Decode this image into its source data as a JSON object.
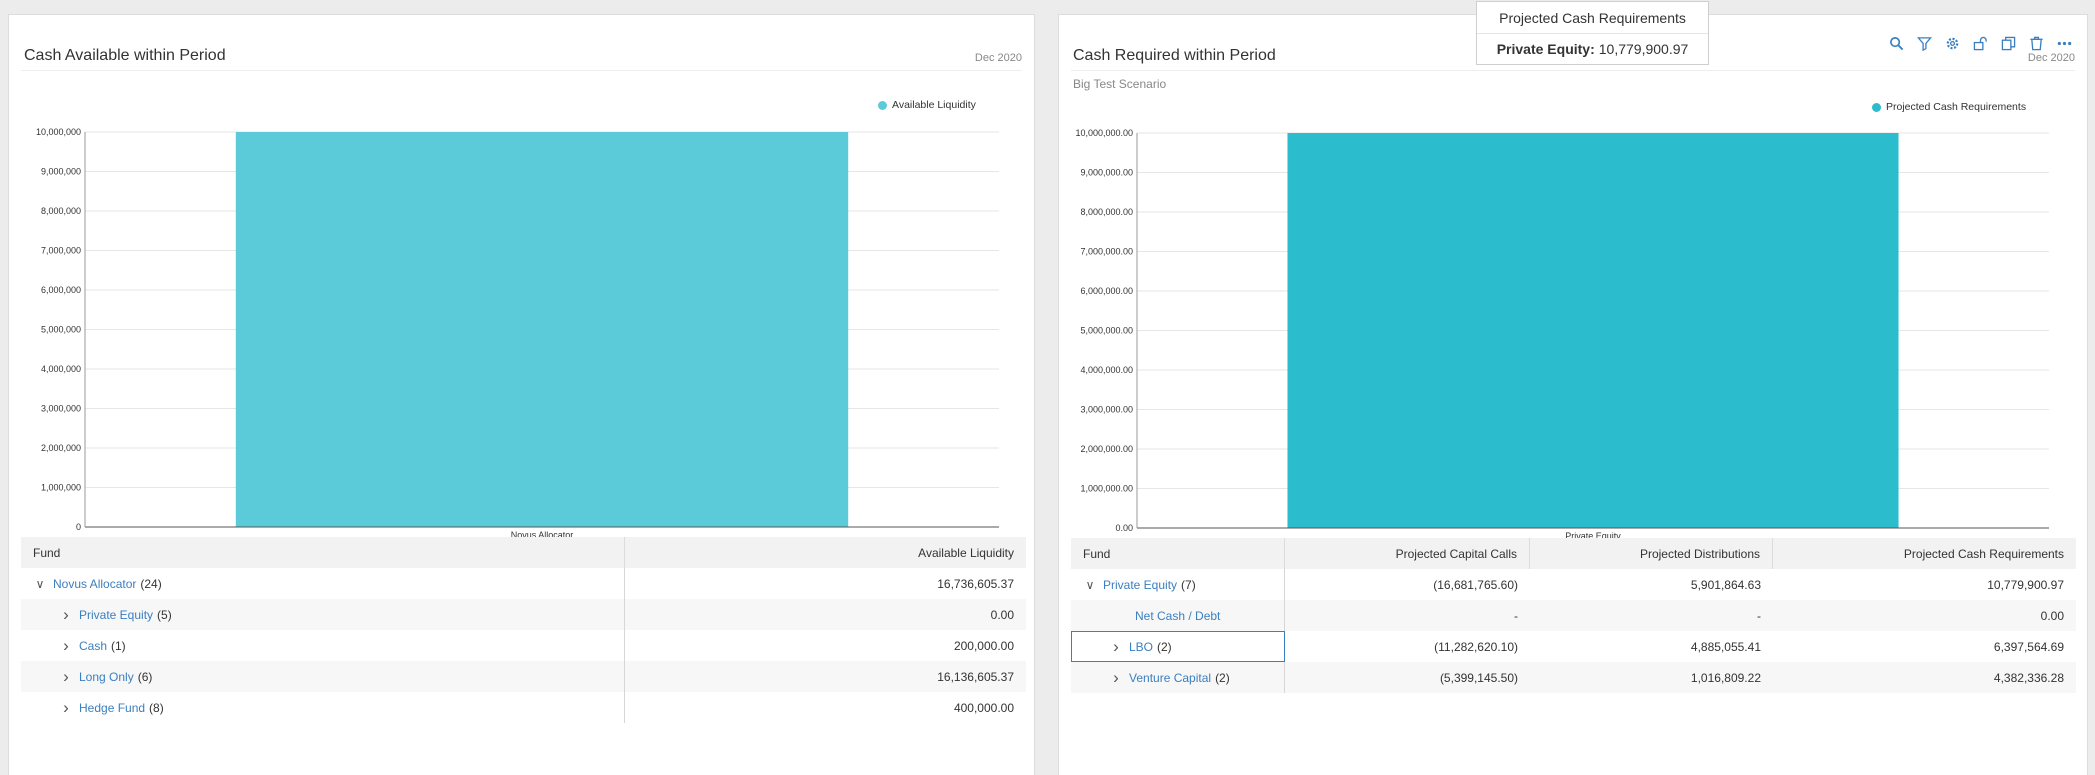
{
  "colors": {
    "bar_left": "#5bcad9",
    "bar_right": "#2bbccd",
    "link": "#3b7fbf"
  },
  "left": {
    "title": "Cash Available within Period",
    "date": "Dec 2020",
    "legend": "Available Liquidity",
    "chart_data": {
      "type": "bar",
      "categories": [
        "Novus Allocator"
      ],
      "series": [
        {
          "name": "Available Liquidity",
          "values": [
            16736605.37
          ]
        }
      ],
      "ylim": [
        0,
        10000000
      ],
      "yticks": [
        "0",
        "1,000,000",
        "2,000,000",
        "3,000,000",
        "4,000,000",
        "5,000,000",
        "6,000,000",
        "7,000,000",
        "8,000,000",
        "9,000,000",
        "10,000,000"
      ],
      "legend_position": "top-right",
      "grid": true
    },
    "grid": {
      "headers": [
        "Fund",
        "Available Liquidity"
      ],
      "rows": [
        {
          "chevron": "down",
          "indent": 0,
          "name": "Novus Allocator",
          "count": "(24)",
          "value": "16,736,605.37"
        },
        {
          "chevron": "right",
          "indent": 1,
          "name": "Private Equity",
          "count": "(5)",
          "value": "0.00"
        },
        {
          "chevron": "right",
          "indent": 1,
          "name": "Cash",
          "count": "(1)",
          "value": "200,000.00"
        },
        {
          "chevron": "right",
          "indent": 1,
          "name": "Long Only",
          "count": "(6)",
          "value": "16,136,605.37"
        },
        {
          "chevron": "right",
          "indent": 1,
          "name": "Hedge Fund",
          "count": "(8)",
          "value": "400,000.00"
        }
      ]
    }
  },
  "right": {
    "title": "Cash Required within Period",
    "subtitle": "Big Test Scenario",
    "date": "Dec 2020",
    "legend": "Projected Cash Requirements",
    "chart_data": {
      "type": "bar",
      "categories": [
        "Private Equity"
      ],
      "series": [
        {
          "name": "Projected Cash Requirements",
          "values": [
            10779900.97
          ]
        }
      ],
      "ylim": [
        0,
        10000000
      ],
      "yticks": [
        "0.00",
        "1,000,000.00",
        "2,000,000.00",
        "3,000,000.00",
        "4,000,000.00",
        "5,000,000.00",
        "6,000,000.00",
        "7,000,000.00",
        "8,000,000.00",
        "9,000,000.00",
        "10,000,000.00"
      ],
      "legend_position": "top-right",
      "grid": true
    },
    "grid": {
      "headers": [
        "Fund",
        "Projected Capital Calls",
        "Projected Distributions",
        "Projected Cash Requirements"
      ],
      "rows": [
        {
          "chevron": "down",
          "indent": 0,
          "name": "Private Equity",
          "count": "(7)",
          "calls": "(16,681,765.60)",
          "dist": "5,901,864.63",
          "req": "10,779,900.97"
        },
        {
          "chevron": "",
          "indent": 2,
          "name": "Net Cash / Debt",
          "count": "",
          "calls": "-",
          "dist": "-",
          "req": "0.00"
        },
        {
          "chevron": "right",
          "indent": 1,
          "name": "LBO",
          "count": "(2)",
          "calls": "(11,282,620.10)",
          "dist": "4,885,055.41",
          "req": "6,397,564.69"
        },
        {
          "chevron": "right",
          "indent": 1,
          "name": "Venture Capital",
          "count": "(2)",
          "calls": "(5,399,145.50)",
          "dist": "1,016,809.22",
          "req": "4,382,336.28"
        }
      ]
    }
  },
  "tooltip": {
    "title": "Projected Cash Requirements",
    "label": "Private Equity:",
    "value": "10,779,900.97"
  },
  "toolbar": [
    "search-icon",
    "filter-icon",
    "gear-icon",
    "unlock-icon",
    "copy-icon",
    "trash-icon",
    "more-icon"
  ]
}
